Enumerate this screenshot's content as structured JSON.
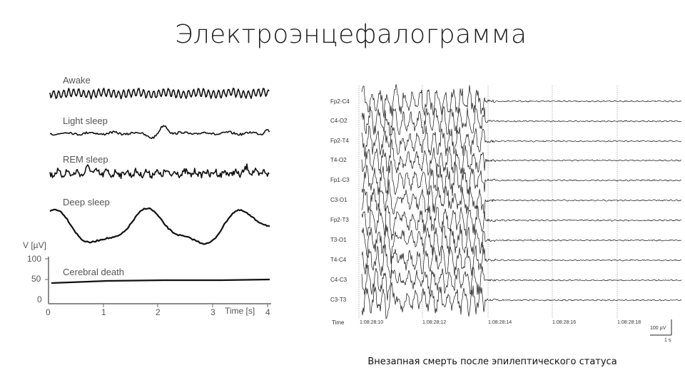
{
  "slide": {
    "title": "Электроэнцефалограмма",
    "caption": "Внезапная смерть после эпилептического статуса"
  },
  "left_panel": {
    "traces": [
      {
        "label": "Awake"
      },
      {
        "label": "Light sleep"
      },
      {
        "label": "REM sleep"
      },
      {
        "label": "Deep sleep"
      },
      {
        "label": "Cerebral death"
      }
    ],
    "y_axis": {
      "label": "V [µV]",
      "ticks": [
        "100",
        "50",
        "0"
      ]
    },
    "x_axis": {
      "label": "Time [s]",
      "ticks": [
        "0",
        "1",
        "2",
        "3",
        "4"
      ]
    }
  },
  "right_panel": {
    "channels": [
      "Fp2-C4",
      "C4-O2",
      "Fp2-T4",
      "T4-O2",
      "Fp1-C3",
      "C3-O1",
      "Fp2-T3",
      "T3-O1",
      "T4-C4",
      "C4-C3",
      "C3-T3"
    ],
    "time_label": "Time",
    "timestamps": [
      "1:08:28:10",
      "1:08:28:12",
      "1:08:28:14",
      "1:08:28:16",
      "1:08:28:18"
    ],
    "scale_bar": {
      "amplitude": "100 µV",
      "duration": "1 s"
    }
  }
}
